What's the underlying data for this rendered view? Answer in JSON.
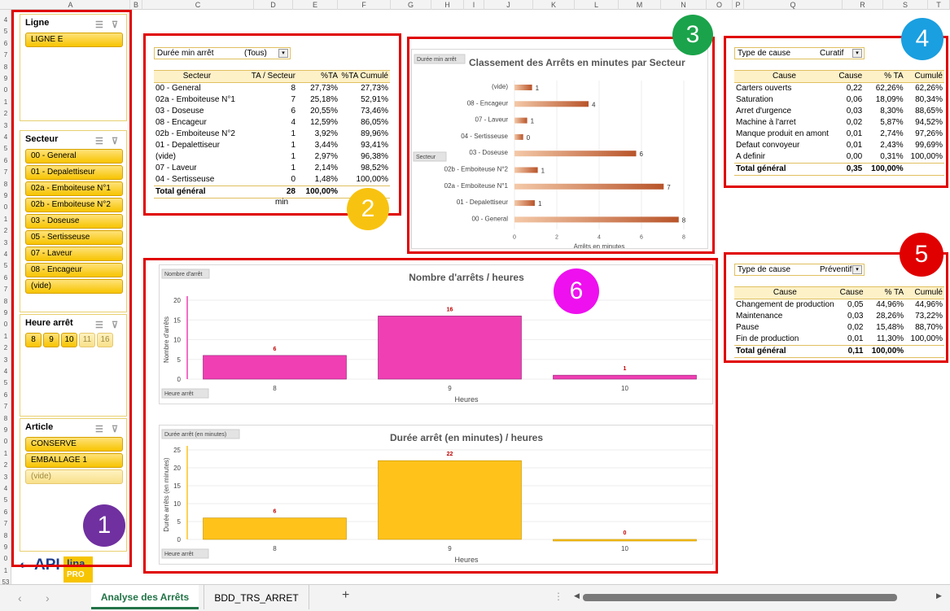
{
  "columns": [
    "A",
    "B",
    "C",
    "D",
    "E",
    "F",
    "G",
    "H",
    "I",
    "J",
    "K",
    "L",
    "M",
    "N",
    "O",
    "P",
    "Q",
    "R",
    "S",
    "T"
  ],
  "rows": [
    "4",
    "5",
    "6",
    "7",
    "8",
    "9",
    "0",
    "1",
    "2",
    "3",
    "4",
    "5",
    "6",
    "7",
    "8",
    "9",
    "0",
    "1",
    "2",
    "3",
    "4",
    "5",
    "6",
    "7",
    "8",
    "9",
    "0",
    "1",
    "2",
    "3",
    "4",
    "5",
    "6",
    "7",
    "8",
    "9",
    "0",
    "1",
    "2",
    "3",
    "4",
    "5",
    "6",
    "7",
    "8",
    "9",
    "0",
    "1",
    "53"
  ],
  "badges": [
    "1",
    "2",
    "3",
    "4",
    "5",
    "6"
  ],
  "slicers": {
    "ligne": {
      "title": "Ligne",
      "items": [
        "LIGNE E"
      ]
    },
    "secteur": {
      "title": "Secteur",
      "items": [
        "00 - General",
        "01 - Depalettiseur",
        "02a - Emboiteuse N°1",
        "02b - Emboiteuse N°2",
        "03 - Doseuse",
        "05 - Sertisseuse",
        "07 - Laveur",
        "08 - Encageur",
        "(vide)"
      ]
    },
    "heure": {
      "title": "Heure arrêt",
      "items": [
        "8",
        "9",
        "10",
        "11",
        "16"
      ]
    },
    "article": {
      "title": "Article",
      "items": [
        "CONSERVE",
        "EMBALLAGE 1",
        "(vide)"
      ]
    }
  },
  "pivot2": {
    "filter_label": "Durée min arrêt",
    "filter_value": "(Tous)",
    "headers": [
      "Secteur",
      "TA / Secteur",
      "%TA",
      "%TA Cumulé"
    ],
    "rows": [
      [
        "00 - General",
        "8",
        "27,73%",
        "27,73%"
      ],
      [
        "02a - Emboiteuse N°1",
        "7",
        "25,18%",
        "52,91%"
      ],
      [
        "03 - Doseuse",
        "6",
        "20,55%",
        "73,46%"
      ],
      [
        "08 - Encageur",
        "4",
        "12,59%",
        "86,05%"
      ],
      [
        "02b - Emboiteuse N°2",
        "1",
        "3,92%",
        "89,96%"
      ],
      [
        "01 - Depalettiseur",
        "1",
        "3,44%",
        "93,41%"
      ],
      [
        "(vide)",
        "1",
        "2,97%",
        "96,38%"
      ],
      [
        "07 - Laveur",
        "1",
        "2,14%",
        "98,52%"
      ],
      [
        "04 - Sertisseuse",
        "0",
        "1,48%",
        "100,00%"
      ]
    ],
    "total": [
      "Total général",
      "28",
      "100,00%",
      ""
    ],
    "unit": "min"
  },
  "chart3": {
    "filter_button": "Durée min arrêt",
    "axis_button": "Secteur",
    "title": "Classement des Arrêts en minutes par Secteur",
    "xlabel": "Arrêts en minutes",
    "xticks": [
      "0",
      "2",
      "4",
      "6",
      "8"
    ]
  },
  "pivot4": {
    "filter_label": "Type de cause",
    "filter_value": "Curatif",
    "headers": [
      "Cause",
      "Cause",
      "% TA",
      "Cumulé"
    ],
    "rows": [
      [
        "Carters ouverts",
        "0,22",
        "62,26%",
        "62,26%"
      ],
      [
        "Saturation",
        "0,06",
        "18,09%",
        "80,34%"
      ],
      [
        "Arret d'urgence",
        "0,03",
        "8,30%",
        "88,65%"
      ],
      [
        "Machine à l'arret",
        "0,02",
        "5,87%",
        "94,52%"
      ],
      [
        "Manque produit en amont",
        "0,01",
        "2,74%",
        "97,26%"
      ],
      [
        "Defaut convoyeur",
        "0,01",
        "2,43%",
        "99,69%"
      ],
      [
        "A definir",
        "0,00",
        "0,31%",
        "100,00%"
      ]
    ],
    "total": [
      "Total général",
      "0,35",
      "100,00%",
      ""
    ]
  },
  "pivot5": {
    "filter_label": "Type de cause",
    "filter_value": "Préventif",
    "headers": [
      "Cause",
      "Cause",
      "% TA",
      "Cumulé"
    ],
    "rows": [
      [
        "Changement de production",
        "0,05",
        "44,96%",
        "44,96%"
      ],
      [
        "Maintenance",
        "0,03",
        "28,26%",
        "73,22%"
      ],
      [
        "Pause",
        "0,02",
        "15,48%",
        "88,70%"
      ],
      [
        "Fin de production",
        "0,01",
        "11,30%",
        "100,00%"
      ]
    ],
    "total": [
      "Total général",
      "0,11",
      "100,00%",
      ""
    ]
  },
  "chart6a": {
    "filter_button": "Nombre d'arrêt",
    "axis_button": "Heure arrêt",
    "title": "Nombre d'arrêts / heures",
    "ylabel": "Nombre d'arrêts",
    "xlabel": "Heures",
    "yticks": [
      "0",
      "5",
      "10",
      "15",
      "20"
    ]
  },
  "chart6b": {
    "filter_button": "Durée arrêt (en minutes)",
    "axis_button": "Heure arrêt",
    "title": "Durée arrêt  (en minutes) / heures",
    "ylabel": "Durée arrêts (en minutes)",
    "xlabel": "Heures",
    "yticks": [
      "0",
      "5",
      "10",
      "15",
      "20",
      "25"
    ]
  },
  "chart_data": [
    {
      "type": "bar",
      "orientation": "horizontal",
      "title": "Classement des Arrêts en minutes par Secteur",
      "xlabel": "Arrêts en minutes",
      "ylabel": "",
      "categories": [
        "(vide)",
        "08 - Encageur",
        "07 - Laveur",
        "04 - Sertisseuse",
        "03 - Doseuse",
        "02b - Emboiteuse N°2",
        "02a - Emboiteuse N°1",
        "01 - Depalettiseur",
        "00 - General"
      ],
      "values": [
        0.83,
        3.5,
        0.6,
        0.41,
        5.75,
        1.1,
        7.05,
        0.96,
        7.76
      ],
      "labels": [
        "1",
        "4",
        "1",
        "0",
        "6",
        "1",
        "7",
        "1",
        "8"
      ],
      "xlim": [
        0,
        8
      ],
      "color": "#c0602a"
    },
    {
      "type": "bar",
      "title": "Nombre d'arrêts / heures",
      "xlabel": "Heures",
      "ylabel": "Nombre d'arrêts",
      "categories": [
        "8",
        "9",
        "10"
      ],
      "values": [
        6,
        16,
        1
      ],
      "ylim": [
        0,
        20
      ],
      "color": "#f03fb3"
    },
    {
      "type": "bar",
      "title": "Durée arrêt  (en minutes) / heures",
      "xlabel": "Heures",
      "ylabel": "Durée arrêts (en minutes)",
      "categories": [
        "8",
        "9",
        "10"
      ],
      "values": [
        6,
        22,
        0
      ],
      "ylim": [
        0,
        25
      ],
      "color": "#ffc21a"
    }
  ],
  "tabs": {
    "active": "Analyse des Arrêts",
    "other": "BDD_TRS_ARRET",
    "add": "+",
    "dots": "⋮"
  },
  "logo": {
    "api": "API",
    "lina": "lina",
    "pro": "PRO"
  }
}
